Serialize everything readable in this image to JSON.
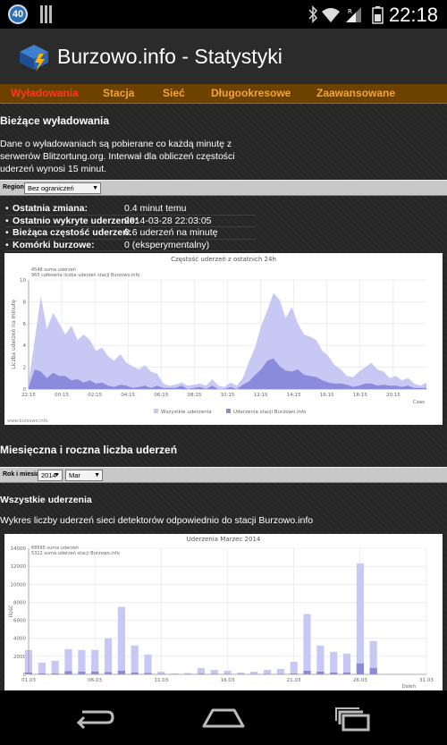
{
  "status_bar": {
    "badge": "40",
    "time": "22:18",
    "icons": [
      "bluetooth-icon",
      "wifi-icon",
      "signal-icon",
      "battery-icon"
    ]
  },
  "app": {
    "title": "Burzowo.info - Statystyki"
  },
  "nav": {
    "items": [
      {
        "label": "Wyładowania",
        "active": true
      },
      {
        "label": "Stacja",
        "active": false
      },
      {
        "label": "Sieć",
        "active": false
      },
      {
        "label": "Długookresowe",
        "active": false
      },
      {
        "label": "Zaawansowane",
        "active": false
      }
    ]
  },
  "current": {
    "heading": "Bieżące wyładowania",
    "description": [
      "Dane o wyładowaniach są pobierane co każdą minutę z",
      "serwerów Blitzortung.org. Interwał dla obliczeń częstości",
      "uderzeń wynosi 15 minut."
    ],
    "region_label": "Region:",
    "region_value": "Bez ograniczeń",
    "stats": [
      {
        "label": "Ostatnia zmiana:",
        "value": "0.4 minut temu"
      },
      {
        "label": "Ostatnio wykryte uderzenie:",
        "value": "2014-03-28 22:03:05"
      },
      {
        "label": "Bieżąca częstość uderzeń:",
        "value": "0.6 uderzeń na minutę"
      },
      {
        "label": "Komórki burzowe:",
        "value": "0 (eksperymentalny)"
      }
    ]
  },
  "monthly": {
    "heading": "Miesięczna i roczna liczba uderzeń",
    "filter_label": "Rok i miesiąc:",
    "year": "2014",
    "month": "Mar",
    "sub_heading": "Wszystkie uderzenia",
    "description": "Wykres liczby uderzeń sieci detektorów odpowiednio do stacji Burzowo.info"
  },
  "colors": {
    "all": "#c8c8f5",
    "station": "#8b8bdd"
  },
  "chart_data": [
    {
      "type": "area",
      "title": "Częstość uderzeń z ostatnich 24h",
      "annotations": [
        "4548 suma uderzeń",
        "965 całkowita liczba uderzeń stacji Burzowo.info"
      ],
      "ylabel": "Liczba uderzeń na minutę",
      "xlabel": "Czas",
      "ylim": [
        0,
        10
      ],
      "yticks": [
        0,
        2,
        4,
        6,
        8,
        10
      ],
      "x_ticks": [
        "22:15",
        "00:15",
        "02:15",
        "04:15",
        "06:15",
        "08:15",
        "10:15",
        "12:15",
        "14:15",
        "16:15",
        "18:15",
        "20:15"
      ],
      "footer": "www.burzowo.info",
      "series": [
        {
          "name": "Wszystkie uderzenia",
          "values": [
            0.6,
            4.5,
            8.5,
            5.5,
            7.0,
            6.0,
            5.0,
            5.8,
            4.5,
            5.0,
            4.5,
            3.5,
            3.8,
            3.0,
            2.6,
            3.2,
            2.4,
            2.1,
            1.8,
            2.2,
            1.6,
            1.4,
            0.5,
            0.3,
            0.4,
            0.6,
            0.3,
            0.4,
            0.5,
            0.3,
            0.9,
            0.3,
            0.2,
            0.6,
            0.3,
            1.0,
            2.5,
            3.8,
            5.8,
            7.2,
            8.8,
            8.2,
            6.5,
            7.5,
            6.0,
            5.0,
            4.8,
            4.5,
            3.5,
            3.0,
            2.2,
            1.8,
            1.2,
            1.1,
            1.6,
            2.0,
            2.4,
            1.8,
            1.6,
            1.0,
            1.2,
            0.8,
            1.0,
            0.5,
            0.3,
            0.6
          ]
        },
        {
          "name": "Uderzenia stacji Burzowo.info",
          "values": [
            0.2,
            1.8,
            1.6,
            1.0,
            1.5,
            1.2,
            1.2,
            0.8,
            0.9,
            0.6,
            0.8,
            0.5,
            0.6,
            0.3,
            0.2,
            0.4,
            0.3,
            0.1,
            0.2,
            0.3,
            0.1,
            0.3,
            0.1,
            0.1,
            0.1,
            0.3,
            0.0,
            0.1,
            0.2,
            0.0,
            0.3,
            0.0,
            0.0,
            0.2,
            0.0,
            0.4,
            0.7,
            1.3,
            1.8,
            2.6,
            2.8,
            2.1,
            1.7,
            1.6,
            1.8,
            1.3,
            1.2,
            1.1,
            0.8,
            0.6,
            0.5,
            0.5,
            0.4,
            0.2,
            0.3,
            0.5,
            0.5,
            0.3,
            0.4,
            0.3,
            0.3,
            0.2,
            0.3,
            0.1,
            0.1,
            0.1
          ]
        }
      ]
    },
    {
      "type": "bar",
      "title": "Uderzenia Marzec 2014",
      "annotations": [
        "68565 suma uderzeń",
        "5312 suma uderzeń stacji Burzowo.info"
      ],
      "ylabel": "Ilość",
      "xlabel": "Dzień",
      "ylim": [
        0,
        14000
      ],
      "yticks": [
        0,
        2000,
        4000,
        6000,
        8000,
        10000,
        12000,
        14000
      ],
      "categories": [
        "01",
        "02",
        "03",
        "04",
        "05",
        "06",
        "07",
        "08",
        "09",
        "10",
        "11",
        "12",
        "13",
        "14",
        "15",
        "16",
        "17",
        "18",
        "19",
        "20",
        "21",
        "22",
        "23",
        "24",
        "25",
        "26",
        "27",
        "28",
        "29",
        "30",
        "31"
      ],
      "x_ticks": [
        "01.03",
        "06.03",
        "11.03",
        "16.03",
        "21.03",
        "26.03",
        "31.03"
      ],
      "series": [
        {
          "name": "Wszystkie uderzenia",
          "values": [
            2700,
            1300,
            1500,
            2800,
            2700,
            2700,
            4000,
            7500,
            3200,
            2200,
            300,
            100,
            150,
            700,
            500,
            400,
            200,
            300,
            500,
            600,
            1400,
            6700,
            3200,
            2500,
            2300,
            12300,
            3700,
            0,
            0,
            0,
            0
          ]
        },
        {
          "name": "Uderzenia stacji Burzowo.info",
          "values": [
            200,
            100,
            100,
            350,
            300,
            300,
            250,
            400,
            200,
            150,
            50,
            20,
            30,
            80,
            50,
            40,
            20,
            30,
            40,
            50,
            100,
            400,
            300,
            200,
            200,
            1200,
            700,
            0,
            0,
            0,
            0
          ]
        }
      ]
    }
  ]
}
